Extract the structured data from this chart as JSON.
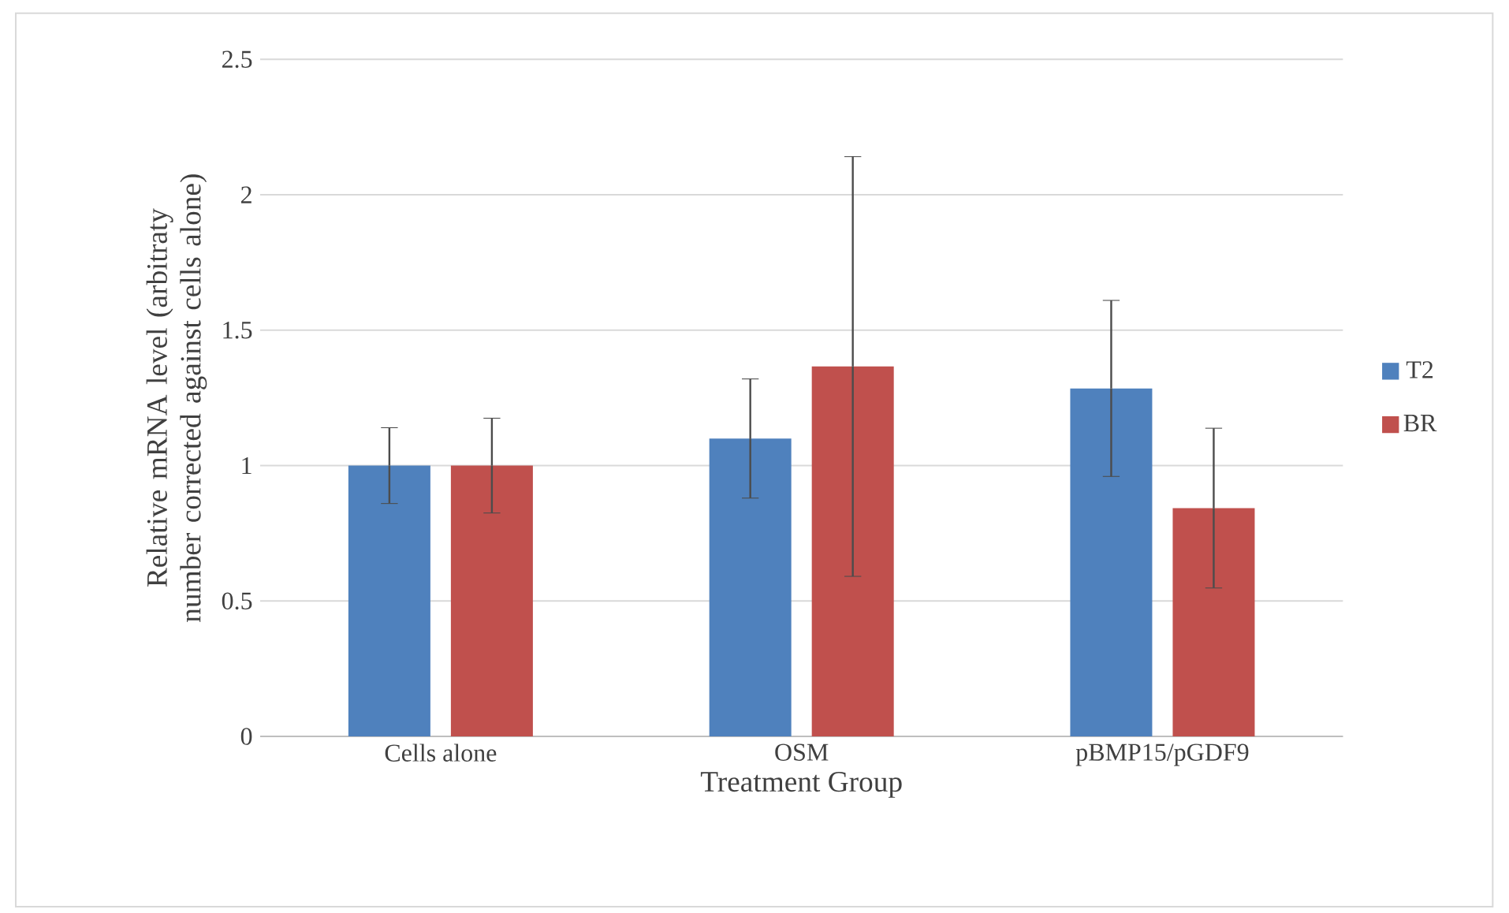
{
  "chart_data": {
    "type": "bar",
    "xlabel": "Treatment Group",
    "ylabel": "Relative mRNA level (arbitraty number corrected against cells alone)",
    "categories": [
      "Cells alone",
      "OSM",
      "pBMP15/pGDF9"
    ],
    "series": [
      {
        "name": "T2",
        "color": "#4f81bd",
        "values": [
          1.0,
          1.1,
          1.285
        ],
        "errors": [
          0.14,
          0.22,
          0.325
        ]
      },
      {
        "name": "BR",
        "color": "#c0504d",
        "values": [
          1.0,
          1.366,
          0.843
        ],
        "errors": [
          0.175,
          0.775,
          0.295
        ]
      }
    ],
    "ylim": [
      0,
      2.5
    ],
    "yticks": [
      0,
      0.5,
      1,
      1.5,
      2,
      2.5
    ],
    "grid": "y",
    "legend": "right"
  }
}
